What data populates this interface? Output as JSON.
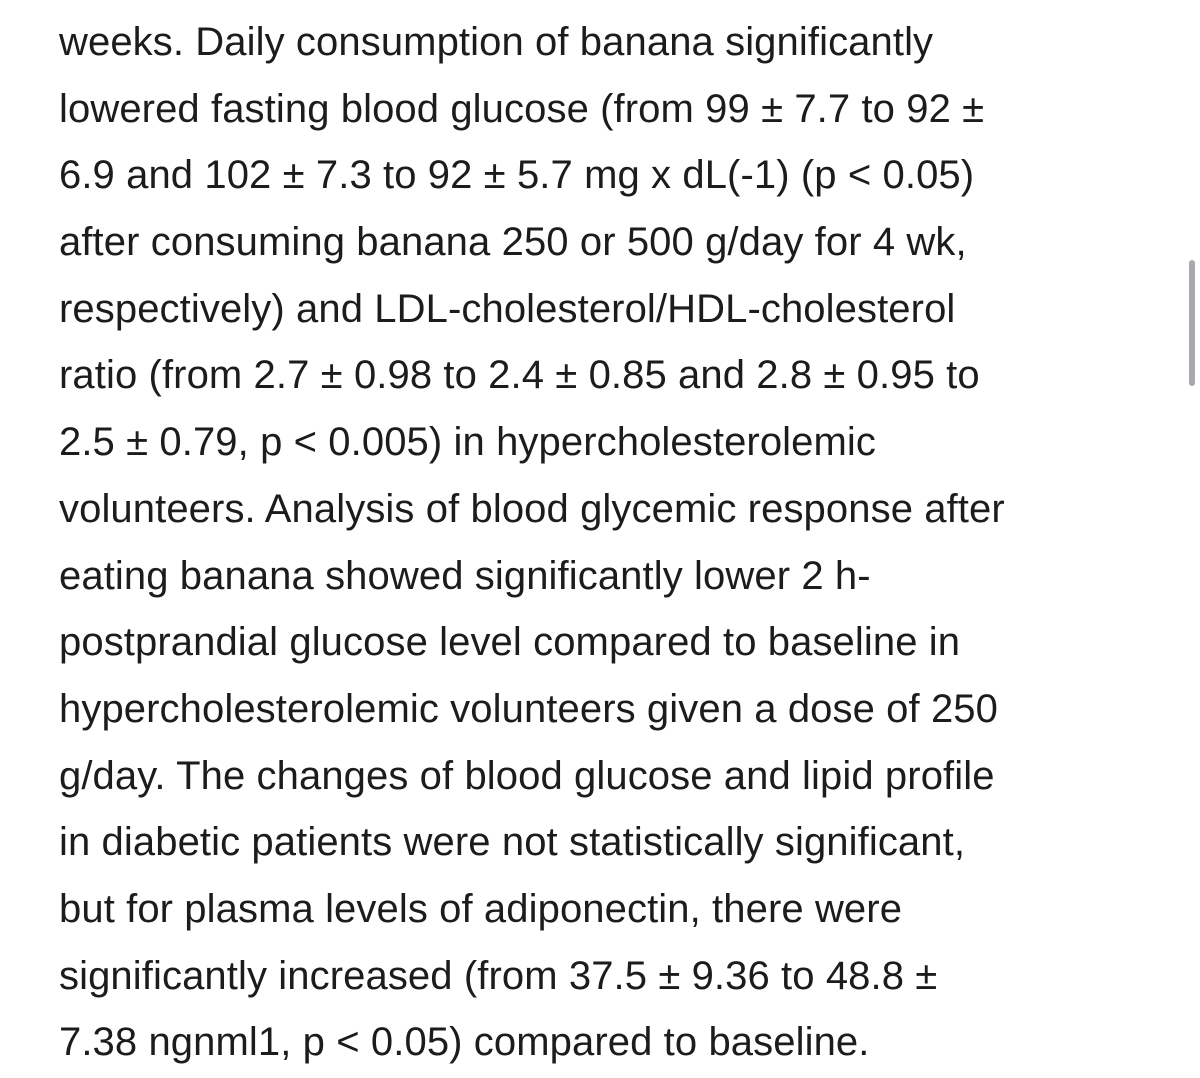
{
  "article": {
    "lines": [
      "weeks. Daily consumption of banana significantly",
      "lowered fasting blood glucose (from 99 ± 7.7 to 92 ±",
      "6.9 and 102 ± 7.3 to 92 ± 5.7 mg x dL(-1) (p < 0.05)",
      "after consuming banana 250 or 500 g/day for 4 wk,",
      "respectively) and LDL-cholesterol/HDL-cholesterol",
      "ratio (from 2.7 ± 0.98 to 2.4 ± 0.85 and 2.8 ± 0.95 to",
      "2.5 ± 0.79, p < 0.005) in hypercholesterolemic",
      "volunteers. Analysis of blood glycemic response after",
      "eating banana showed significantly lower 2 h-",
      "postprandial glucose level compared to baseline in",
      "hypercholesterolemic volunteers given a dose of 250",
      "g/day. The changes of blood glucose and lipid profile",
      "in diabetic patients were not statistically significant,",
      "but for plasma levels of adiponectin, there were",
      "significantly increased (from 37.5 ± 9.36 to 48.8 ±",
      "7.38 ngnml1, p < 0.05) compared to baseline."
    ]
  },
  "colors": {
    "text": "#1c1c1e",
    "background": "#ffffff",
    "scrollbar": "#8e8e93"
  }
}
